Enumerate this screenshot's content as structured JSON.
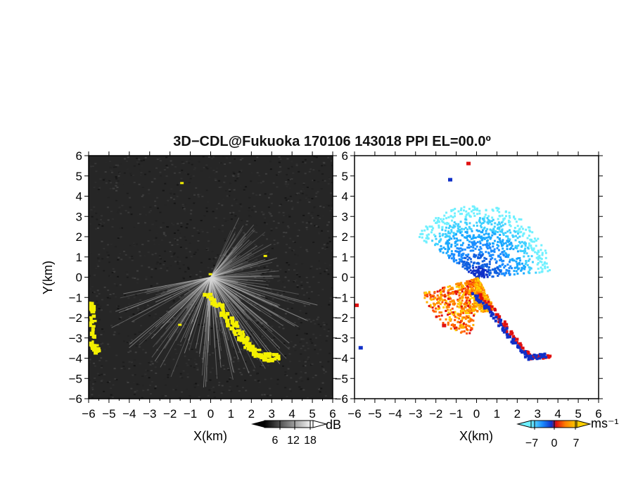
{
  "title": "3D−CDL@Fukuoka 170106 143018 PPI EL=00.0º",
  "colors": {
    "background": "#ffffff",
    "snr_field": "#262626",
    "snr_beam": "#d8d8d8",
    "yellow_echo": "#f4f000",
    "frame": "#000000"
  },
  "chart_data": [
    {
      "type": "heatmap",
      "panel": "left",
      "quantity": "SNR",
      "xlabel": "X(km)",
      "ylabel": "Y(km)",
      "xlim": [
        -6,
        6
      ],
      "ylim": [
        -6,
        6
      ],
      "xticks": [
        "−6",
        "−5",
        "−4",
        "−3",
        "−2",
        "−1",
        "0",
        "1",
        "2",
        "3",
        "4",
        "5",
        "6"
      ],
      "yticks": [
        "6",
        "5",
        "4",
        "3",
        "2",
        "1",
        "0",
        "−1",
        "−2",
        "−3",
        "−4",
        "−5",
        "−6"
      ],
      "grid": false,
      "colorbar": {
        "unit": "dB",
        "ticks": [
          "6",
          "12",
          "18"
        ],
        "range": [
          0,
          24
        ],
        "colormap": "grayscale"
      },
      "features": [
        {
          "name": "beam-fan",
          "center": [
            0,
            0
          ],
          "radius_km": 5.0,
          "az_from_deg": 100,
          "az_to_deg": 260
        },
        {
          "name": "echo-ribbon",
          "points": [
            [
              -0.3,
              -0.8
            ],
            [
              0.5,
              -1.6
            ],
            [
              1.2,
              -2.5
            ],
            [
              1.8,
              -3.3
            ],
            [
              2.4,
              -3.9
            ],
            [
              3.3,
              -3.8
            ]
          ]
        },
        {
          "name": "edge-echo-west",
          "points": [
            [
              -6,
              -1.2
            ],
            [
              -5.9,
              -1.5
            ],
            [
              -5.9,
              -3.3
            ],
            [
              -5.6,
              -3.6
            ]
          ]
        }
      ]
    },
    {
      "type": "heatmap",
      "panel": "right",
      "quantity": "Doppler velocity",
      "xlabel": "X(km)",
      "ylabel": "",
      "xlim": [
        -6,
        6
      ],
      "ylim": [
        -6,
        6
      ],
      "xticks": [
        "−6",
        "−5",
        "−4",
        "−3",
        "−2",
        "−1",
        "0",
        "1",
        "2",
        "3",
        "4",
        "5",
        "6"
      ],
      "yticks": [
        "6",
        "5",
        "4",
        "3",
        "2",
        "1",
        "0",
        "−1",
        "−2",
        "−3",
        "−4",
        "−5",
        "−6"
      ],
      "grid": false,
      "colorbar": {
        "unit": "ms⁻¹",
        "ticks": [
          "−7",
          "0",
          "7"
        ],
        "range": [
          -7,
          7
        ],
        "colormap": "cyan-blue-red-orange-yellow"
      },
      "features": [
        {
          "name": "approaching-fan",
          "center": [
            0,
            0
          ],
          "radius_km": 3.5,
          "velocity_range": [
            -7,
            -3
          ],
          "az_from_deg": -60,
          "az_to_deg": 60
        },
        {
          "name": "receding-fan",
          "center": [
            0,
            0
          ],
          "radius_km": 2.5,
          "velocity_range": [
            3,
            7
          ],
          "az_from_deg": 160,
          "az_to_deg": 250
        }
      ]
    }
  ]
}
